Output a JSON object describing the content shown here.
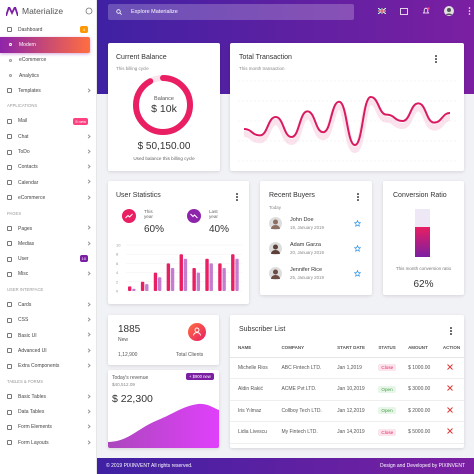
{
  "brand": {
    "name": "Materialize",
    "color": "#7b1fa2"
  },
  "search": {
    "placeholder": "Explore Materialize"
  },
  "sidebar": {
    "items": [
      {
        "label": "Dashboard",
        "icon": "home-icon",
        "badge": "4",
        "badge_color": "#ff9800",
        "type": "parent",
        "expanded": true
      },
      {
        "label": "Modern",
        "type": "sub",
        "active": true
      },
      {
        "label": "eCommerce",
        "type": "sub"
      },
      {
        "label": "Analytics",
        "type": "sub"
      },
      {
        "label": "Templates",
        "icon": "templates-icon",
        "type": "parent"
      },
      {
        "label": "Applications",
        "type": "section"
      },
      {
        "label": "Mail",
        "icon": "mail-icon",
        "badge": "5 new",
        "badge_color": "#ff4081",
        "type": "parent"
      },
      {
        "label": "Chat",
        "icon": "chat-icon",
        "type": "parent"
      },
      {
        "label": "ToDo",
        "icon": "check-icon",
        "type": "parent"
      },
      {
        "label": "Contacts",
        "icon": "contacts-icon",
        "type": "parent"
      },
      {
        "label": "Calendar",
        "icon": "calendar-icon",
        "type": "parent"
      },
      {
        "label": "eCommerce",
        "icon": "cart-icon",
        "type": "parent"
      },
      {
        "label": "Pages",
        "type": "section"
      },
      {
        "label": "Pages",
        "icon": "pages-icon",
        "type": "parent"
      },
      {
        "label": "Medias",
        "icon": "media-icon",
        "type": "parent"
      },
      {
        "label": "User",
        "icon": "user-icon",
        "badge": "10",
        "badge_color": "#7b1fa2",
        "type": "parent"
      },
      {
        "label": "Misc",
        "icon": "misc-icon",
        "type": "parent"
      },
      {
        "label": "User Interface",
        "type": "section"
      },
      {
        "label": "Cards",
        "icon": "cards-icon",
        "type": "parent"
      },
      {
        "label": "CSS",
        "icon": "css-icon",
        "type": "parent"
      },
      {
        "label": "Basic UI",
        "icon": "basic-ui-icon",
        "type": "parent"
      },
      {
        "label": "Advanced UI",
        "icon": "advanced-ui-icon",
        "type": "parent"
      },
      {
        "label": "Extra Components",
        "icon": "extra-icon",
        "type": "parent"
      },
      {
        "label": "Tables & Forms",
        "type": "section"
      },
      {
        "label": "Basic Tables",
        "icon": "table-icon",
        "type": "parent"
      },
      {
        "label": "Data Tables",
        "icon": "data-table-icon",
        "type": "parent"
      },
      {
        "label": "Form Elements",
        "icon": "form-icon",
        "type": "parent"
      },
      {
        "label": "Form Layouts",
        "icon": "form-layout-icon",
        "type": "parent"
      }
    ]
  },
  "current_balance": {
    "title": "Current Balance",
    "subtitle": "This billing cycle",
    "center_label": "Balance",
    "center_value": "$ 10k",
    "amount": "$ 50,150.00",
    "caption": "Used balance this billing cycle",
    "ring_fraction": 0.92
  },
  "total_transaction": {
    "title": "Total Transaction",
    "subtitle": "This month transaction",
    "chart_data": {
      "type": "line",
      "title": "",
      "y": [
        40,
        32,
        55,
        30,
        62,
        36,
        74,
        20,
        80,
        58,
        50,
        72,
        48,
        60
      ],
      "ylim": [
        0,
        100
      ],
      "color": "#d81b60"
    }
  },
  "user_statistics": {
    "title": "User Statistics",
    "this_year_label": "This year",
    "this_year_value": "60%",
    "last_year_label": "Last year",
    "last_year_value": "40%",
    "chart_data": {
      "type": "bar",
      "title": "",
      "yticks": [
        10,
        8,
        6,
        4,
        2,
        0
      ],
      "ylim": [
        0,
        10
      ],
      "series": [
        {
          "values": [
            1,
            2,
            4,
            6,
            8,
            5,
            7,
            6,
            8
          ]
        },
        {
          "values": [
            0.5,
            1.5,
            3,
            5,
            7,
            4,
            6,
            5,
            7
          ]
        }
      ],
      "colors": [
        "#e91e63",
        "#ab47bc"
      ]
    }
  },
  "recent_buyers": {
    "title": "Recent Buyers",
    "today": "Today",
    "buyers": [
      {
        "name": "John Doe",
        "date": "19, January 2019"
      },
      {
        "name": "Adam Garza",
        "date": "20, January 2019"
      },
      {
        "name": "Jennifer Rice",
        "date": "25, January 2019"
      }
    ]
  },
  "conversion": {
    "title": "Conversion Ratio",
    "caption": "This month conversion ratio",
    "value": "62%",
    "fill_fraction": 0.62
  },
  "clients": {
    "count": "1885",
    "new_label": "New",
    "total": "1,12,900",
    "total_label": "Total Clients"
  },
  "revenue": {
    "label": "Today's revenue",
    "value_small": "$40,512.09",
    "value": "$ 22,300",
    "pill": "+ $900 new"
  },
  "subscribers": {
    "title": "Subscriber List",
    "columns": [
      "NAME",
      "COMPANY",
      "START DATE",
      "STATUS",
      "AMOUNT",
      "ACTION"
    ],
    "rows": [
      {
        "name": "Michelle Rios",
        "company": "ABC Fintech LTD.",
        "date": "Jan 1,2019",
        "status": "Close",
        "amount": "$ 1000.00"
      },
      {
        "name": "Aldin Rakić",
        "company": "ACME Pvt LTD.",
        "date": "Jan 10,2019",
        "status": "Open",
        "amount": "$ 3000.00"
      },
      {
        "name": "Iris Yılmaz",
        "company": "Collboy Tech LTD.",
        "date": "Jan 12,2019",
        "status": "Open",
        "amount": "$ 2000.00"
      },
      {
        "name": "Lidia Livescu",
        "company": "My Fintech LTD.",
        "date": "Jan 14,2019",
        "status": "Close",
        "amount": "$ 5000.00"
      }
    ]
  },
  "footer": {
    "left": "© 2019 PIXINVENT All rights reserved.",
    "right": "Design and Developed by PIXINVENT"
  }
}
